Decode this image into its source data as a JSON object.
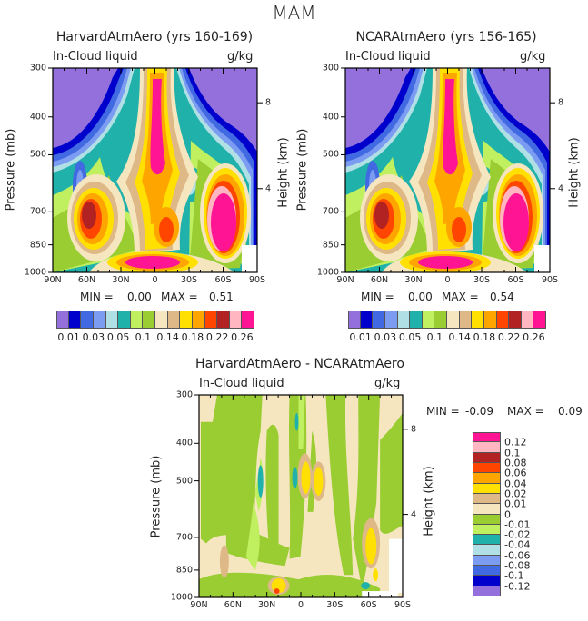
{
  "title": "MAM",
  "colors": {
    "levels16": [
      "#9370DB",
      "#0000CD",
      "#4169E1",
      "#7B9CF0",
      "#B0E0E6",
      "#20B2AA",
      "#C0F060",
      "#9ACD32",
      "#F5E6C0",
      "#DEB887",
      "#FFE000",
      "#FFA500",
      "#FF4500",
      "#B22222",
      "#FFB6C1",
      "#FF1493"
    ]
  },
  "chart_data": [
    {
      "type": "heatmap",
      "title": "HarvardAtmAero (yrs 160-169)",
      "subtitle_left": "In-Cloud liquid",
      "subtitle_right": "g/kg",
      "ylabel": "Pressure (mb)",
      "ylabel_right": "Height (km)",
      "x_ticks": [
        "90N",
        "60N",
        "30N",
        "0",
        "30S",
        "60S",
        "90S"
      ],
      "y_ticks": [
        "300",
        "400",
        "500",
        "700",
        "850",
        "1000"
      ],
      "y_right_ticks": [
        "8",
        "4"
      ],
      "ylim": [
        1000,
        300
      ],
      "min_label": "MIN =",
      "min": "0.00",
      "max_label": "MAX =",
      "max": "0.51",
      "colorbar_labels": [
        "0.01",
        "0.03",
        "0.05",
        "0.1",
        "0.14",
        "0.18",
        "0.22",
        "0.26"
      ]
    },
    {
      "type": "heatmap",
      "title": "NCARAtmAero (yrs 156-165)",
      "subtitle_left": "In-Cloud liquid",
      "subtitle_right": "g/kg",
      "ylabel": "Pressure (mb)",
      "ylabel_right": "Height (km)",
      "x_ticks": [
        "90N",
        "60N",
        "30N",
        "0",
        "30S",
        "60S",
        "90S"
      ],
      "y_ticks": [
        "300",
        "400",
        "500",
        "700",
        "850",
        "1000"
      ],
      "y_right_ticks": [
        "8",
        "4"
      ],
      "ylim": [
        1000,
        300
      ],
      "min_label": "MIN =",
      "min": "0.00",
      "max_label": "MAX =",
      "max": "0.54",
      "colorbar_labels": [
        "0.01",
        "0.03",
        "0.05",
        "0.1",
        "0.14",
        "0.18",
        "0.22",
        "0.26"
      ]
    },
    {
      "type": "heatmap",
      "title": "HarvardAtmAero - NCARAtmAero",
      "subtitle_left": "In-Cloud liquid",
      "subtitle_right": "g/kg",
      "ylabel": "Pressure (mb)",
      "ylabel_right": "Height (km)",
      "x_ticks": [
        "90N",
        "60N",
        "30N",
        "0",
        "30S",
        "60S",
        "90S"
      ],
      "y_ticks": [
        "300",
        "400",
        "500",
        "700",
        "850",
        "1000"
      ],
      "y_right_ticks": [
        "8",
        "4"
      ],
      "ylim": [
        1000,
        300
      ],
      "min_label": "MIN =",
      "min": "-0.09",
      "max_label": "MAX =",
      "max": "0.09",
      "colorbar_labels": [
        "0.12",
        "0.1",
        "0.08",
        "0.06",
        "0.04",
        "0.02",
        "0.01",
        "0",
        "-0.01",
        "-0.02",
        "-0.04",
        "-0.06",
        "-0.08",
        "-0.1",
        "-0.12"
      ]
    }
  ]
}
